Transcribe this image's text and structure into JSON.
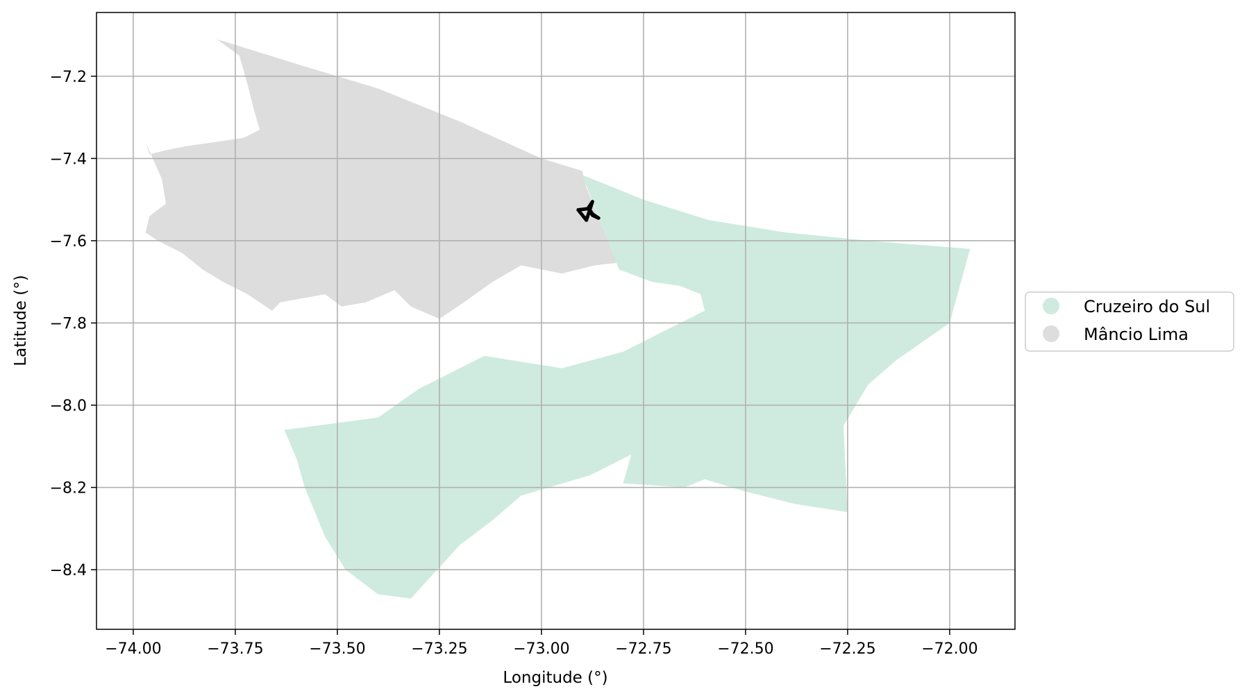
{
  "chart_data": {
    "type": "map",
    "xlabel": "Longitude (°)",
    "ylabel": "Latitude (°)",
    "xlim": [
      -74.09,
      -71.84
    ],
    "ylim": [
      -8.545,
      -7.045
    ],
    "grid": true,
    "x_ticks": [
      -74.0,
      -73.75,
      -73.5,
      -73.25,
      -73.0,
      -72.75,
      -72.5,
      -72.25,
      -72.0
    ],
    "x_tick_labels": [
      "−74.00",
      "−73.75",
      "−73.50",
      "−73.25",
      "−73.00",
      "−72.75",
      "−72.50",
      "−72.25",
      "−72.00"
    ],
    "y_ticks": [
      -7.2,
      -7.4,
      -7.6,
      -7.8,
      -8.0,
      -8.2,
      -8.4
    ],
    "y_tick_labels": [
      "−7.2",
      "−7.4",
      "−7.6",
      "−7.8",
      "−8.0",
      "−8.2",
      "−8.4"
    ],
    "legend_position": "right-outside",
    "regions": [
      {
        "name": "Mâncio Lima",
        "color": "#dddddd",
        "outline": [
          [
            -73.795,
            -7.11
          ],
          [
            -73.74,
            -7.15
          ],
          [
            -73.72,
            -7.22
          ],
          [
            -73.705,
            -7.28
          ],
          [
            -73.69,
            -7.33
          ],
          [
            -73.73,
            -7.35
          ],
          [
            -73.8,
            -7.36
          ],
          [
            -73.87,
            -7.37
          ],
          [
            -73.92,
            -7.38
          ],
          [
            -73.96,
            -7.39
          ],
          [
            -73.97,
            -7.36
          ],
          [
            -73.93,
            -7.45
          ],
          [
            -73.92,
            -7.51
          ],
          [
            -73.96,
            -7.54
          ],
          [
            -73.97,
            -7.58
          ],
          [
            -73.94,
            -7.6
          ],
          [
            -73.88,
            -7.63
          ],
          [
            -73.83,
            -7.67
          ],
          [
            -73.78,
            -7.7
          ],
          [
            -73.72,
            -7.73
          ],
          [
            -73.66,
            -7.77
          ],
          [
            -73.64,
            -7.75
          ],
          [
            -73.53,
            -7.73
          ],
          [
            -73.49,
            -7.76
          ],
          [
            -73.43,
            -7.75
          ],
          [
            -73.36,
            -7.72
          ],
          [
            -73.32,
            -7.76
          ],
          [
            -73.25,
            -7.79
          ],
          [
            -73.19,
            -7.75
          ],
          [
            -73.12,
            -7.7
          ],
          [
            -73.05,
            -7.66
          ],
          [
            -72.95,
            -7.68
          ],
          [
            -72.87,
            -7.66
          ],
          [
            -72.78,
            -7.65
          ],
          [
            -72.85,
            -7.57
          ],
          [
            -72.89,
            -7.47
          ],
          [
            -72.9,
            -7.43
          ],
          [
            -73.0,
            -7.4
          ],
          [
            -73.2,
            -7.31
          ],
          [
            -73.4,
            -7.23
          ],
          [
            -73.6,
            -7.17
          ],
          [
            -73.795,
            -7.11
          ]
        ]
      },
      {
        "name": "Cruzeiro do Sul",
        "color": "#cfebdf",
        "outline": [
          [
            -72.9,
            -7.44
          ],
          [
            -72.75,
            -7.5
          ],
          [
            -72.59,
            -7.55
          ],
          [
            -72.4,
            -7.58
          ],
          [
            -72.2,
            -7.6
          ],
          [
            -71.95,
            -7.62
          ],
          [
            -72.0,
            -7.8
          ],
          [
            -72.13,
            -7.89
          ],
          [
            -72.2,
            -7.95
          ],
          [
            -72.26,
            -8.05
          ],
          [
            -72.25,
            -8.26
          ],
          [
            -72.38,
            -8.24
          ],
          [
            -72.5,
            -8.21
          ],
          [
            -72.6,
            -8.18
          ],
          [
            -72.65,
            -8.2
          ],
          [
            -72.8,
            -8.19
          ],
          [
            -72.78,
            -8.12
          ],
          [
            -72.88,
            -8.17
          ],
          [
            -73.05,
            -8.22
          ],
          [
            -73.12,
            -8.28
          ],
          [
            -73.2,
            -8.34
          ],
          [
            -73.32,
            -8.47
          ],
          [
            -73.4,
            -8.46
          ],
          [
            -73.48,
            -8.4
          ],
          [
            -73.53,
            -8.32
          ],
          [
            -73.58,
            -8.2
          ],
          [
            -73.6,
            -8.13
          ],
          [
            -73.63,
            -8.06
          ],
          [
            -73.4,
            -8.03
          ],
          [
            -73.3,
            -7.96
          ],
          [
            -73.22,
            -7.92
          ],
          [
            -73.14,
            -7.88
          ],
          [
            -72.95,
            -7.91
          ],
          [
            -72.8,
            -7.87
          ],
          [
            -72.68,
            -7.81
          ],
          [
            -72.6,
            -7.77
          ],
          [
            -72.61,
            -7.73
          ],
          [
            -72.66,
            -7.71
          ],
          [
            -72.73,
            -7.7
          ],
          [
            -72.81,
            -7.67
          ],
          [
            -72.85,
            -7.57
          ],
          [
            -72.9,
            -7.44
          ]
        ]
      }
    ],
    "marker_outline": {
      "color": "#000000",
      "points": [
        [
          -72.875,
          -7.505
        ],
        [
          -72.89,
          -7.55
        ],
        [
          -72.91,
          -7.525
        ],
        [
          -72.885,
          -7.522
        ],
        [
          -72.875,
          -7.538
        ],
        [
          -72.86,
          -7.545
        ],
        [
          -72.875,
          -7.535
        ],
        [
          -72.885,
          -7.52
        ],
        [
          -72.875,
          -7.505
        ]
      ]
    }
  },
  "legend": {
    "items": [
      {
        "label": "Cruzeiro do Sul",
        "color": "#cfebdf"
      },
      {
        "label": "Mâncio Lima",
        "color": "#dddddd"
      }
    ]
  }
}
